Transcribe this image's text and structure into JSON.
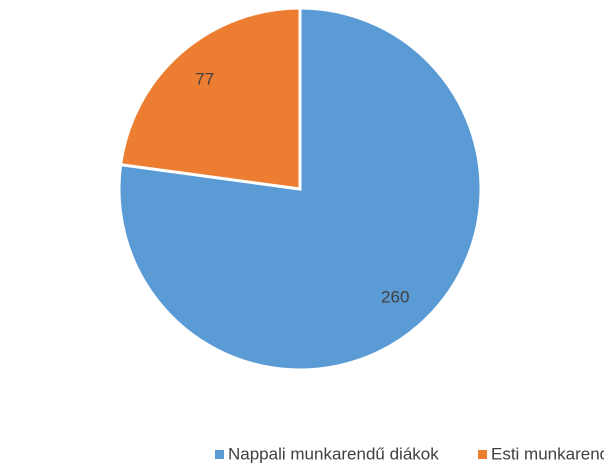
{
  "chart_data": {
    "type": "pie",
    "categories": [
      "Nappali munkarendű diákok",
      "Esti munkarendű diákok"
    ],
    "values": [
      260,
      77
    ],
    "colors": [
      "#5b9bd5",
      "#ed7d31"
    ],
    "legend": "bottom"
  }
}
